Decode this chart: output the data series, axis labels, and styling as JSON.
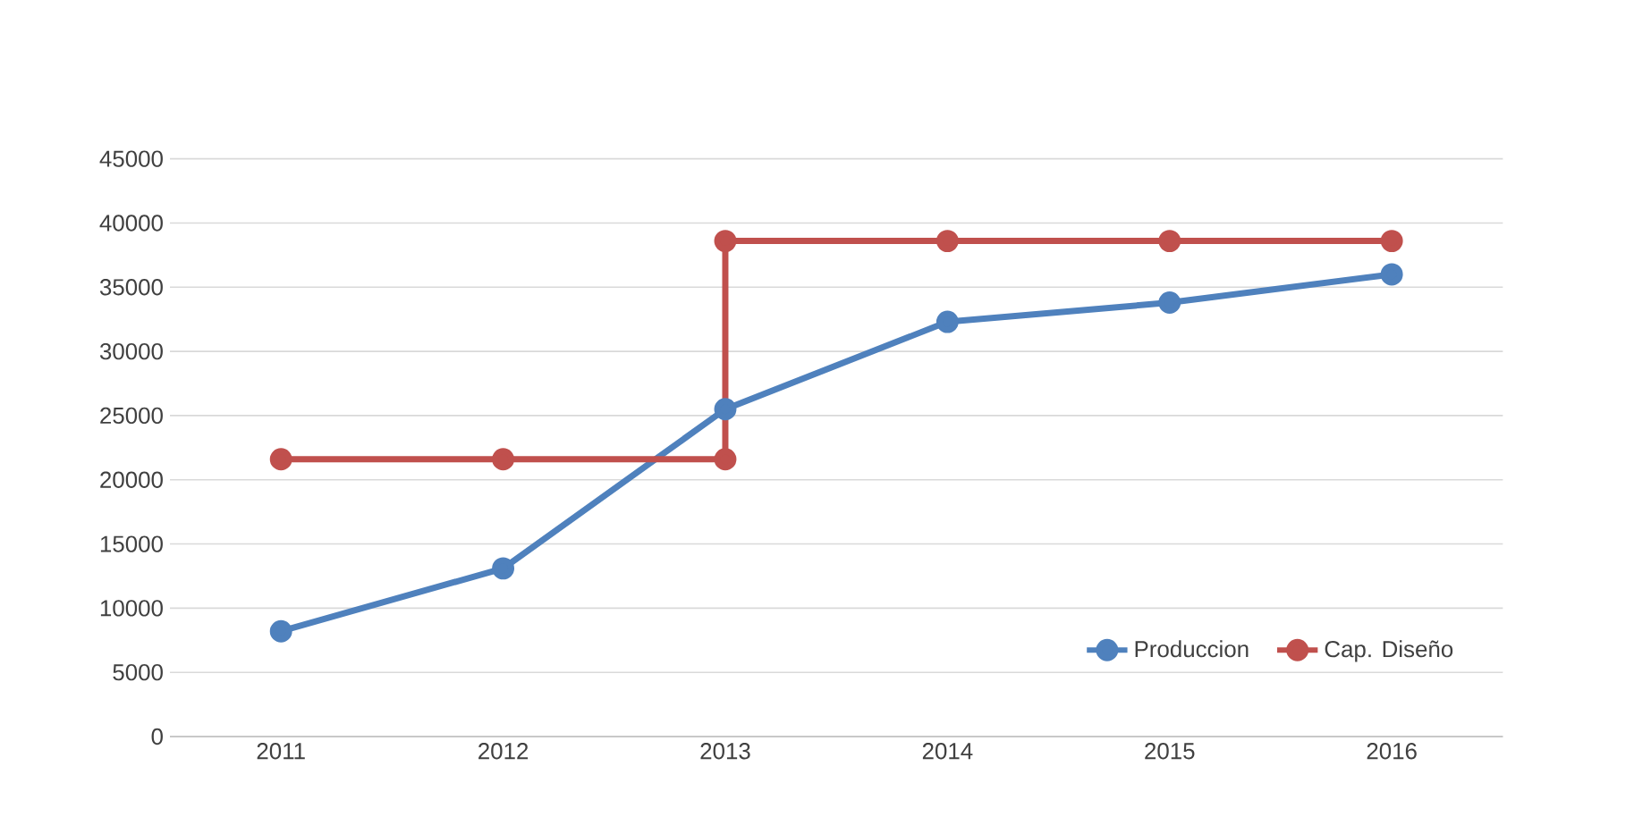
{
  "chart_data": {
    "type": "line",
    "xlim": [
      2010.5,
      2016.5
    ],
    "xticks": [
      2011,
      2012,
      2013,
      2014,
      2015,
      2016
    ],
    "ylim": [
      0,
      45000
    ],
    "yticks": [
      0,
      5000,
      10000,
      15000,
      20000,
      25000,
      30000,
      35000,
      40000,
      45000
    ],
    "series": [
      {
        "name": "Produccion",
        "color": "#4f81bd",
        "x": [
          2011,
          2012,
          2013,
          2014,
          2015,
          2016
        ],
        "values": [
          8200,
          13100,
          25500,
          32300,
          33800,
          36000
        ]
      },
      {
        "name": "Cap. Diseño",
        "color": "#c0504d",
        "x": [
          2011,
          2012,
          2013,
          2013,
          2014,
          2015,
          2016
        ],
        "values": [
          21600,
          21600,
          21600,
          38600,
          38600,
          38600,
          38600
        ]
      }
    ],
    "grid": "y",
    "legend": "bottom right",
    "marker": "circle",
    "line_style": "solid"
  }
}
